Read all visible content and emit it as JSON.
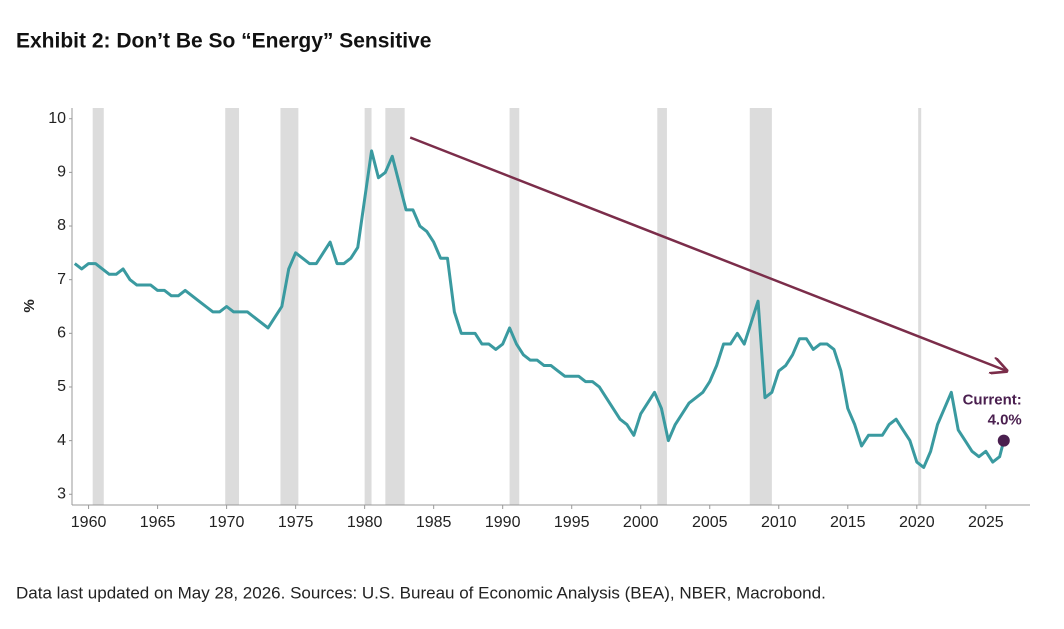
{
  "chart_data": {
    "type": "line",
    "title": "Exhibit 2: Don’t Be So “Energy” Sensitive",
    "y_label": "%",
    "source": "Data last updated on May 28, 2026. Sources: U.S. Bureau of Economic Analysis (BEA), NBER, Macrobond.",
    "x": [
      1959,
      1959.5,
      1960,
      1960.5,
      1961,
      1961.5,
      1962,
      1962.5,
      1963,
      1963.5,
      1964,
      1964.5,
      1965,
      1965.5,
      1966,
      1966.5,
      1967,
      1967.5,
      1968,
      1968.5,
      1969,
      1969.5,
      1970,
      1970.5,
      1971,
      1971.5,
      1972,
      1972.5,
      1973,
      1973.5,
      1974,
      1974.5,
      1975,
      1975.5,
      1976,
      1976.5,
      1977,
      1977.5,
      1978,
      1978.5,
      1979,
      1979.5,
      1980,
      1980.5,
      1981,
      1981.5,
      1982,
      1982.5,
      1983,
      1983.5,
      1984,
      1984.5,
      1985,
      1985.5,
      1986,
      1986.5,
      1987,
      1987.5,
      1988,
      1988.5,
      1989,
      1989.5,
      1990,
      1990.5,
      1991,
      1991.5,
      1992,
      1992.5,
      1993,
      1993.5,
      1994,
      1994.5,
      1995,
      1995.5,
      1996,
      1996.5,
      1997,
      1997.5,
      1998,
      1998.5,
      1999,
      1999.5,
      2000,
      2000.5,
      2001,
      2001.5,
      2002,
      2002.5,
      2003,
      2003.5,
      2004,
      2004.5,
      2005,
      2005.5,
      2006,
      2006.5,
      2007,
      2007.5,
      2008,
      2008.5,
      2009,
      2009.5,
      2010,
      2010.5,
      2011,
      2011.5,
      2012,
      2012.5,
      2013,
      2013.5,
      2014,
      2014.5,
      2015,
      2015.5,
      2016,
      2016.5,
      2017,
      2017.5,
      2018,
      2018.5,
      2019,
      2019.5,
      2020,
      2020.5,
      2021,
      2021.5,
      2022,
      2022.5,
      2023,
      2023.5,
      2024,
      2024.5,
      2025,
      2025.5,
      2026,
      2026.3
    ],
    "series": [
      {
        "color": "#3a9aa0",
        "values": [
          7.3,
          7.2,
          7.3,
          7.3,
          7.2,
          7.1,
          7.1,
          7.2,
          7.0,
          6.9,
          6.9,
          6.9,
          6.8,
          6.8,
          6.7,
          6.7,
          6.8,
          6.7,
          6.6,
          6.5,
          6.4,
          6.4,
          6.5,
          6.4,
          6.4,
          6.4,
          6.3,
          6.2,
          6.1,
          6.3,
          6.5,
          7.2,
          7.5,
          7.4,
          7.3,
          7.3,
          7.5,
          7.7,
          7.3,
          7.3,
          7.4,
          7.6,
          8.5,
          9.4,
          8.9,
          9.0,
          9.3,
          8.8,
          8.3,
          8.3,
          8.0,
          7.9,
          7.7,
          7.4,
          7.4,
          6.4,
          6.0,
          6.0,
          6.0,
          5.8,
          5.8,
          5.7,
          5.8,
          6.1,
          5.8,
          5.6,
          5.5,
          5.5,
          5.4,
          5.4,
          5.3,
          5.2,
          5.2,
          5.2,
          5.1,
          5.1,
          5.0,
          4.8,
          4.6,
          4.4,
          4.3,
          4.1,
          4.5,
          4.7,
          4.9,
          4.6,
          4.0,
          4.3,
          4.5,
          4.7,
          4.8,
          4.9,
          5.1,
          5.4,
          5.8,
          5.8,
          6.0,
          5.8,
          6.2,
          6.6,
          4.8,
          4.9,
          5.3,
          5.4,
          5.6,
          5.9,
          5.9,
          5.7,
          5.8,
          5.8,
          5.7,
          5.3,
          4.6,
          4.3,
          3.9,
          4.1,
          4.1,
          4.1,
          4.3,
          4.4,
          4.2,
          4.0,
          3.6,
          3.5,
          3.8,
          4.3,
          4.6,
          4.9,
          4.2,
          4.0,
          3.8,
          3.7,
          3.8,
          3.6,
          3.7,
          4.0
        ]
      }
    ],
    "recessions": [
      [
        1960.3,
        1961.1
      ],
      [
        1969.9,
        1970.9
      ],
      [
        1973.9,
        1975.2
      ],
      [
        1980.0,
        1980.5
      ],
      [
        1981.5,
        1982.9
      ],
      [
        1990.5,
        1991.2
      ],
      [
        2001.2,
        2001.9
      ],
      [
        2007.9,
        2009.5
      ],
      [
        2020.1,
        2020.3
      ]
    ],
    "trend_line": {
      "color": "#7b2d4a",
      "x": [
        1983.3,
        2026.5
      ],
      "y": [
        9.65,
        5.3
      ]
    },
    "annotation": {
      "label": "Current:",
      "value_label": "4.0%",
      "x": 2026.3,
      "y": 4.0,
      "color": "#4a1f4f"
    },
    "xlim": [
      1958.8,
      2028.2
    ],
    "ylim": [
      2.8,
      10.2
    ],
    "xticks": [
      1960,
      1965,
      1970,
      1975,
      1980,
      1985,
      1990,
      1995,
      2000,
      2005,
      2010,
      2015,
      2020,
      2025
    ],
    "yticks": [
      3,
      4,
      5,
      6,
      7,
      8,
      9,
      10
    ]
  }
}
